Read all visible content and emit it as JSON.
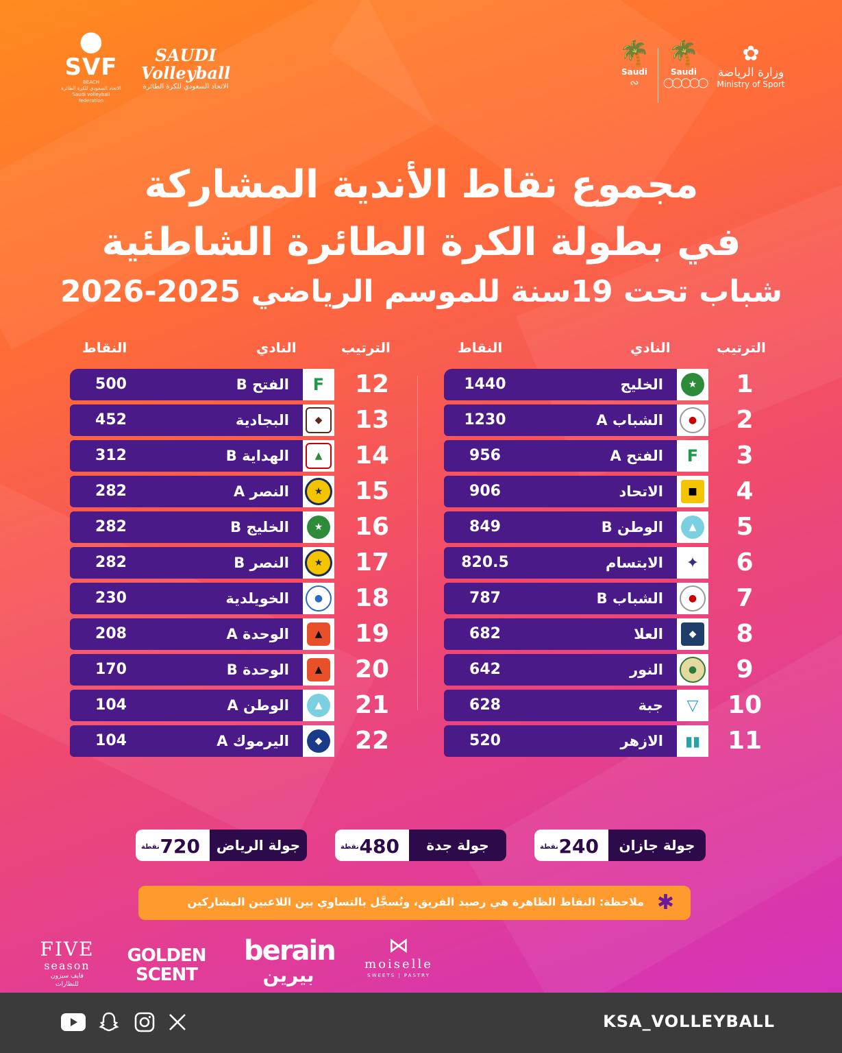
{
  "header": {
    "svf_logo": {
      "word": "SVF",
      "tag": "BEACH",
      "ar": "الاتحاد السعودي للكرة الطائرة",
      "en": "Saudi volleyball federation"
    },
    "sv_logo": {
      "word1": "SAUDI",
      "word2": "Volleyball",
      "ar": "الاتحاد السعودي للكرة الطائرة"
    },
    "paralympic_label": "Saudi",
    "olympic_label": "Saudi",
    "ministry_ar": "وزارة الرياضة",
    "ministry_en": "Ministry of Sport"
  },
  "title": {
    "line1": "مجموع نقاط الأندية المشاركة",
    "line2": "في بطولة الكرة الطائرة الشاطئية",
    "line3": "شباب تحت 19سنة للموسم الرياضي 2025-2026"
  },
  "headers": {
    "rank": "الترتيب",
    "club": "النادي",
    "points": "النقاط"
  },
  "table_right": [
    {
      "rank": "1",
      "club": "الخليج",
      "points": "1440"
    },
    {
      "rank": "2",
      "club": "الشباب A",
      "points": "1230"
    },
    {
      "rank": "3",
      "club": "الفتح A",
      "points": "956"
    },
    {
      "rank": "4",
      "club": "الاتحاد",
      "points": "906"
    },
    {
      "rank": "5",
      "club": "الوطن B",
      "points": "849"
    },
    {
      "rank": "6",
      "club": "الابتسام",
      "points": "820.5"
    },
    {
      "rank": "7",
      "club": "الشباب B",
      "points": "787"
    },
    {
      "rank": "8",
      "club": "العلا",
      "points": "682"
    },
    {
      "rank": "9",
      "club": "النور",
      "points": "642"
    },
    {
      "rank": "10",
      "club": "جبة",
      "points": "628"
    },
    {
      "rank": "11",
      "club": "الازهر",
      "points": "520"
    }
  ],
  "table_left": [
    {
      "rank": "12",
      "club": "الفتح B",
      "points": "500"
    },
    {
      "rank": "13",
      "club": "البجادية",
      "points": "452"
    },
    {
      "rank": "14",
      "club": "الهداية B",
      "points": "312"
    },
    {
      "rank": "15",
      "club": "النصر A",
      "points": "282"
    },
    {
      "rank": "16",
      "club": "الخليج B",
      "points": "282"
    },
    {
      "rank": "17",
      "club": "النصر B",
      "points": "282"
    },
    {
      "rank": "18",
      "club": "الخويلدية",
      "points": "230"
    },
    {
      "rank": "19",
      "club": "الوحدة A",
      "points": "208"
    },
    {
      "rank": "20",
      "club": "الوحدة B",
      "points": "170"
    },
    {
      "rank": "21",
      "club": "الوطن A",
      "points": "104"
    },
    {
      "rank": "22",
      "club": "اليرموك A",
      "points": "104"
    }
  ],
  "tours": [
    {
      "name": "جولة الرياض",
      "points": "720",
      "unit": "نقطة"
    },
    {
      "name": "جولة جدة",
      "points": "480",
      "unit": "نقطة"
    },
    {
      "name": "جولة جازان",
      "points": "240",
      "unit": "نقطة"
    }
  ],
  "note": "ملاحظة: النقاط الظاهرة هي رصيد الفريق، وتُسجَّل بالتساوي بين اللاعبين المشاركين",
  "sponsors": {
    "five_season": {
      "big": "FIVE",
      "small": "season",
      "ar": "فايف سيزون للنظارات"
    },
    "golden_scent": {
      "line1": "GOLDEN",
      "line2": "SCENT"
    },
    "berain": {
      "en": "berain",
      "ar": "بيرين"
    },
    "moiselle": {
      "name": "moiselle",
      "sub": "SWEETS | PASTRY"
    }
  },
  "footer": {
    "handle": "KSA_VOLLEYBALL"
  }
}
